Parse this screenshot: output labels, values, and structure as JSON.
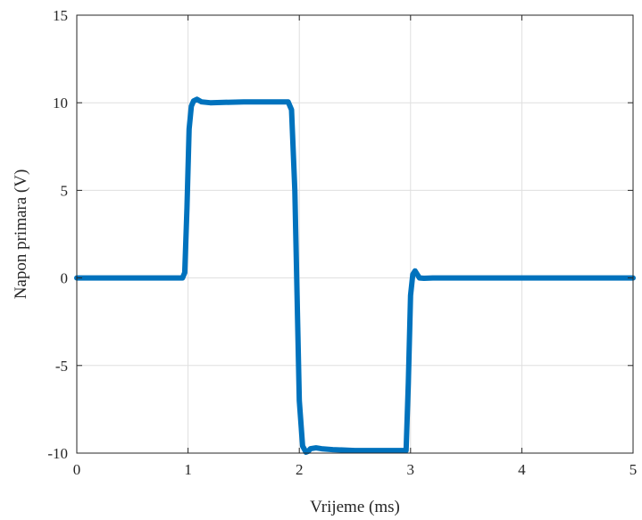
{
  "chart_data": {
    "type": "line",
    "title": "",
    "xlabel": "Vrijeme (ms)",
    "ylabel": "Napon primara (V)",
    "xlim": [
      0,
      5
    ],
    "ylim": [
      -10,
      15
    ],
    "xticks": [
      0,
      1,
      2,
      3,
      4,
      5
    ],
    "yticks": [
      -10,
      -5,
      0,
      5,
      10,
      15
    ],
    "xtick_labels": [
      "0",
      "1",
      "2",
      "3",
      "4",
      "5"
    ],
    "ytick_labels": [
      "-10",
      "-5",
      "0",
      "5",
      "10",
      "15"
    ],
    "grid": true,
    "line_color": "#0072bd",
    "series": [
      {
        "x": [
          0,
          0.95,
          0.97,
          0.99,
          1.01,
          1.03,
          1.05,
          1.08,
          1.12,
          1.2,
          1.5,
          1.9,
          1.93,
          1.96,
          1.98,
          2.0,
          2.03,
          2.06,
          2.08,
          2.1,
          2.15,
          2.2,
          2.3,
          2.5,
          2.96,
          2.98,
          3.0,
          3.02,
          3.04,
          3.06,
          3.08,
          3.12,
          3.2,
          3.5,
          4.0,
          4.5,
          5.0
        ],
        "y": [
          0,
          0,
          0.3,
          4.0,
          8.5,
          9.8,
          10.1,
          10.2,
          10.05,
          10.0,
          10.05,
          10.05,
          9.6,
          5.0,
          -1.0,
          -7.0,
          -9.6,
          -9.95,
          -9.9,
          -9.75,
          -9.7,
          -9.75,
          -9.8,
          -9.85,
          -9.85,
          -6.0,
          -1.0,
          0.2,
          0.4,
          0.2,
          0.0,
          -0.02,
          0,
          0,
          0,
          0,
          0
        ]
      }
    ]
  }
}
